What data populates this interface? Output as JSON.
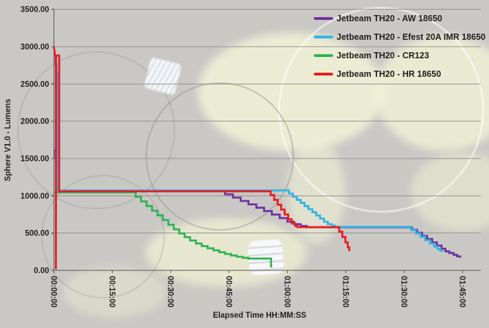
{
  "chart_data": {
    "type": "line",
    "title": "",
    "xlabel": "Elapsed Time HH:MM:SS",
    "ylabel": "Sphere V1.0 - Lumens",
    "x_unit": "minutes",
    "xlim_minutes": [
      0,
      110
    ],
    "ylim": [
      0,
      3500
    ],
    "grid": "horizontal",
    "legend_position": "top-right-overlay",
    "y_axis": {
      "tick_values": [
        3500,
        3000,
        2500,
        2000,
        1500,
        1000,
        500,
        0
      ],
      "tick_labels": [
        "3500.00",
        "3000.00",
        "2500.00",
        "2000.00",
        "1500.00",
        "1000.00",
        "500.00",
        "0.00"
      ]
    },
    "x_axis": {
      "tick_minutes": [
        0,
        15,
        30,
        45,
        60,
        75,
        90,
        105
      ],
      "tick_labels": [
        "00:00:00",
        "00:15:00",
        "00:30:00",
        "00:45:00",
        "01:00:00",
        "01:15:00",
        "01:30:00",
        "01:45:00"
      ]
    },
    "series": [
      {
        "name": "Jetbeam TH20 - AW 18650",
        "color": "#7030a0",
        "points": [
          [
            0,
            1610
          ],
          [
            0.4,
            1610
          ],
          [
            0.4,
            1500
          ],
          [
            0.9,
            1500
          ],
          [
            0.9,
            1065
          ],
          [
            44,
            1065
          ],
          [
            44,
            1020
          ],
          [
            46,
            1020
          ],
          [
            46,
            975
          ],
          [
            48,
            975
          ],
          [
            48,
            930
          ],
          [
            50,
            930
          ],
          [
            50,
            885
          ],
          [
            52,
            885
          ],
          [
            52,
            840
          ],
          [
            54,
            840
          ],
          [
            54,
            795
          ],
          [
            56,
            795
          ],
          [
            56,
            748
          ],
          [
            58,
            748
          ],
          [
            58,
            700
          ],
          [
            60,
            700
          ],
          [
            60,
            652
          ],
          [
            61.7,
            652
          ],
          [
            61.7,
            620
          ],
          [
            63.4,
            620
          ],
          [
            63.4,
            595
          ],
          [
            65,
            595
          ],
          [
            65,
            578
          ],
          [
            92,
            578
          ],
          [
            92,
            545
          ],
          [
            93.3,
            545
          ],
          [
            93.3,
            505
          ],
          [
            94.6,
            505
          ],
          [
            94.6,
            462
          ],
          [
            95.9,
            462
          ],
          [
            95.9,
            420
          ],
          [
            97.2,
            420
          ],
          [
            97.2,
            375
          ],
          [
            98.4,
            375
          ],
          [
            98.4,
            332
          ],
          [
            99.6,
            332
          ],
          [
            99.6,
            290
          ],
          [
            100.6,
            290
          ],
          [
            100.6,
            255
          ],
          [
            101.6,
            255
          ],
          [
            101.6,
            232
          ],
          [
            102.7,
            232
          ],
          [
            102.7,
            208
          ],
          [
            103.6,
            208
          ],
          [
            103.6,
            188
          ],
          [
            104.4,
            188
          ],
          [
            104.4,
            170
          ]
        ]
      },
      {
        "name": "Jetbeam TH20 - Efest 20A IMR 18650",
        "color": "#2fb3e8",
        "points": [
          [
            0,
            2870
          ],
          [
            0.35,
            2870
          ],
          [
            0.35,
            2760
          ],
          [
            0.7,
            2760
          ],
          [
            0.7,
            2650
          ],
          [
            0.95,
            2650
          ],
          [
            0.95,
            1072
          ],
          [
            60.4,
            1072
          ],
          [
            60.4,
            1030
          ],
          [
            61.4,
            1030
          ],
          [
            61.4,
            988
          ],
          [
            62.4,
            988
          ],
          [
            62.4,
            946
          ],
          [
            63.4,
            946
          ],
          [
            63.4,
            904
          ],
          [
            64.4,
            904
          ],
          [
            64.4,
            862
          ],
          [
            65.4,
            862
          ],
          [
            65.4,
            820
          ],
          [
            66.4,
            820
          ],
          [
            66.4,
            778
          ],
          [
            67.4,
            778
          ],
          [
            67.4,
            736
          ],
          [
            68.4,
            736
          ],
          [
            68.4,
            694
          ],
          [
            69.4,
            694
          ],
          [
            69.4,
            652
          ],
          [
            70.4,
            652
          ],
          [
            70.4,
            620
          ],
          [
            71.4,
            620
          ],
          [
            71.4,
            600
          ],
          [
            72.2,
            600
          ],
          [
            72.2,
            582
          ],
          [
            91.8,
            582
          ],
          [
            91.8,
            540
          ],
          [
            93,
            540
          ],
          [
            93,
            495
          ],
          [
            94.2,
            495
          ],
          [
            94.2,
            450
          ],
          [
            95.4,
            450
          ],
          [
            95.4,
            405
          ],
          [
            96.6,
            405
          ],
          [
            96.6,
            360
          ],
          [
            97.7,
            360
          ],
          [
            97.7,
            318
          ],
          [
            98.6,
            318
          ],
          [
            98.6,
            285
          ],
          [
            99.3,
            285
          ],
          [
            99.3,
            262
          ],
          [
            99.8,
            262
          ],
          [
            99.8,
            248
          ]
        ]
      },
      {
        "name": "Jetbeam TH20 - CR123",
        "color": "#2eb353",
        "points": [
          [
            0,
            1045
          ],
          [
            21,
            1045
          ],
          [
            21,
            985
          ],
          [
            22.4,
            985
          ],
          [
            22.4,
            925
          ],
          [
            23.8,
            925
          ],
          [
            23.8,
            862
          ],
          [
            25.2,
            862
          ],
          [
            25.2,
            800
          ],
          [
            26.6,
            800
          ],
          [
            26.6,
            738
          ],
          [
            28,
            738
          ],
          [
            28,
            675
          ],
          [
            29.4,
            675
          ],
          [
            29.4,
            612
          ],
          [
            30.8,
            612
          ],
          [
            30.8,
            550
          ],
          [
            32.2,
            550
          ],
          [
            32.2,
            495
          ],
          [
            33.6,
            495
          ],
          [
            33.6,
            445
          ],
          [
            35,
            445
          ],
          [
            35,
            400
          ],
          [
            36.5,
            400
          ],
          [
            36.5,
            360
          ],
          [
            38,
            360
          ],
          [
            38,
            325
          ],
          [
            39.5,
            325
          ],
          [
            39.5,
            295
          ],
          [
            41,
            295
          ],
          [
            41,
            268
          ],
          [
            42.5,
            268
          ],
          [
            42.5,
            243
          ],
          [
            44,
            243
          ],
          [
            44,
            220
          ],
          [
            45.5,
            220
          ],
          [
            45.5,
            200
          ],
          [
            47,
            200
          ],
          [
            47,
            183
          ],
          [
            48.5,
            183
          ],
          [
            48.5,
            168
          ],
          [
            50,
            168
          ],
          [
            50,
            158
          ],
          [
            55.8,
            158
          ],
          [
            55.8,
            52
          ],
          [
            56.1,
            52
          ]
        ]
      },
      {
        "name": "Jetbeam TH20 - HR 18650",
        "color": "#ea1c20",
        "points": [
          [
            0,
            2995
          ],
          [
            0.3,
            2880
          ],
          [
            0.5,
            2880
          ],
          [
            0.52,
            15
          ],
          [
            0.56,
            2880
          ],
          [
            1.35,
            2880
          ],
          [
            1.35,
            1060
          ],
          [
            55.7,
            1060
          ],
          [
            55.7,
            1010
          ],
          [
            56.6,
            1010
          ],
          [
            56.6,
            945
          ],
          [
            57.5,
            945
          ],
          [
            57.5,
            880
          ],
          [
            58.4,
            880
          ],
          [
            58.4,
            815
          ],
          [
            59.3,
            815
          ],
          [
            59.3,
            750
          ],
          [
            60.2,
            750
          ],
          [
            60.2,
            685
          ],
          [
            61.1,
            685
          ],
          [
            61.1,
            630
          ],
          [
            62,
            630
          ],
          [
            62,
            595
          ],
          [
            62.6,
            595
          ],
          [
            62.6,
            580
          ],
          [
            73.3,
            580
          ],
          [
            73.3,
            520
          ],
          [
            74.1,
            520
          ],
          [
            74.1,
            448
          ],
          [
            74.9,
            448
          ],
          [
            74.9,
            375
          ],
          [
            75.5,
            375
          ],
          [
            75.5,
            310
          ],
          [
            75.9,
            310
          ],
          [
            75.9,
            258
          ]
        ]
      }
    ]
  },
  "style": {
    "text_color": "#1f1f1f",
    "gridline_color": "#929190",
    "axis_color": "#55534f",
    "plot_bg": "#c9c8c5"
  }
}
